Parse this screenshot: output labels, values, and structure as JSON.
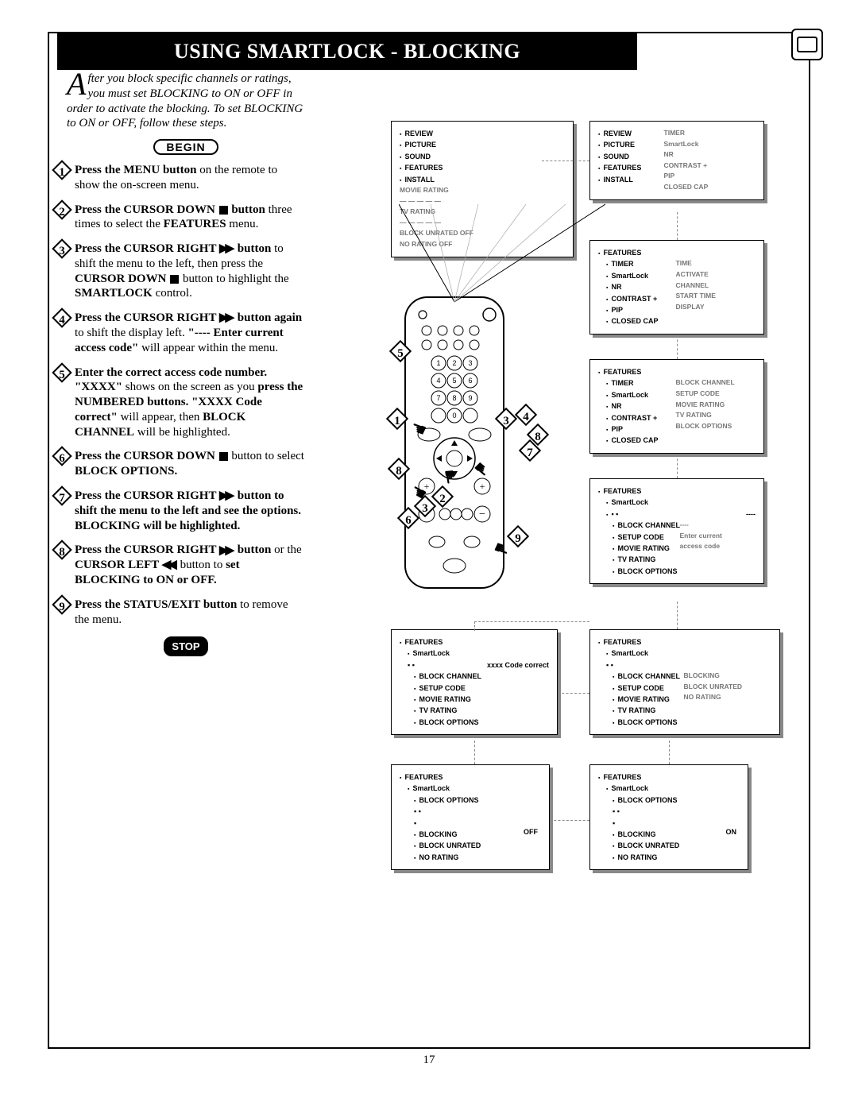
{
  "page_number": "17",
  "header_title": "USING SMARTLOCK - BLOCKING",
  "intro_text": "fter you block specific channels or ratings, you must set BLOCKING to ON or OFF in order to activate the blocking. To set BLOCKING to ON or OFF, follow these steps.",
  "intro_dropcap": "A",
  "begin_label": "BEGIN",
  "stop_label": "STOP",
  "steps": [
    {
      "n": "1",
      "html": "<b>Press the MENU button</b> on the remote to show the on-screen menu."
    },
    {
      "n": "2",
      "html": "<b>Press the CURSOR DOWN <span class='sq'></span> button</b> three times to select the <b>FEATURES</b> menu."
    },
    {
      "n": "3",
      "html": "<b>Press the CURSOR RIGHT <span class='rt'>▶▶</span> button</b> to shift the menu to the left, then press the <b>CURSOR DOWN <span class='sq'></span></b> button to highlight the <b>SMARTLOCK</b> control."
    },
    {
      "n": "4",
      "html": "<b>Press the CURSOR RIGHT <span class='rt'>▶▶</span> button again</b> to shift the display left. <b>\"---- Enter current access code\"</b> will appear within the menu."
    },
    {
      "n": "5",
      "html": "<b>Enter the correct access code number. \"XXXX\"</b> shows on the screen as you <b>press the NUMBERED buttons. \"XXXX Code correct\"</b> will appear, then <b>BLOCK CHANNEL</b> will be highlighted."
    },
    {
      "n": "6",
      "html": "<b>Press the CURSOR DOWN <span class='sq'></span></b> button to select <b>BLOCK OPTIONS.</b>"
    },
    {
      "n": "7",
      "html": "<b>Press the CURSOR RIGHT <span class='rt'>▶▶</span> button to shift the menu to the left and see the options. BLOCKING will be highlighted.</b>"
    },
    {
      "n": "8",
      "html": "<b>Press the CURSOR RIGHT <span class='rt'>▶▶</span> button</b> or the <b>CURSOR LEFT <span class='lt'>◀◀</span></b> button to <b>set BLOCKING to ON or OFF.</b>"
    },
    {
      "n": "9",
      "html": "<b>Press the STATUS/EXIT button</b> to remove the menu."
    }
  ],
  "menu1": {
    "left": [
      "REVIEW",
      "PICTURE",
      "SOUND",
      "FEATURES",
      "INSTALL"
    ],
    "right": [
      "MOVIE RATING",
      "— — — — —",
      "TV RATING",
      "— — — — —",
      "BLOCK UNRATED OFF",
      "NO RATING        OFF"
    ]
  },
  "menu2": {
    "left": [
      "REVIEW",
      "PICTURE",
      "SOUND",
      "FEATURES",
      "INSTALL"
    ],
    "right": [
      "TIMER",
      "SmartLock",
      "NR",
      "CONTRAST +",
      "PIP",
      "CLOSED CAP"
    ]
  },
  "menu3": {
    "title": "FEATURES",
    "left": [
      "TIMER",
      "SmartLock",
      "NR",
      "CONTRAST +",
      "PIP",
      "CLOSED CAP"
    ],
    "right": [
      "TIME",
      "ACTIVATE",
      "CHANNEL",
      "START TIME",
      "DISPLAY"
    ]
  },
  "menu4": {
    "title": "FEATURES",
    "left": [
      "TIMER",
      "SmartLock",
      "NR",
      "CONTRAST +",
      "PIP",
      "CLOSED CAP"
    ],
    "right": [
      "BLOCK CHANNEL",
      "SETUP CODE",
      "MOVIE RATING",
      "TV RATING",
      "BLOCK OPTIONS"
    ]
  },
  "menu5": {
    "title": "FEATURES",
    "sub": "SmartLock",
    "left": [
      "BLOCK CHANNEL",
      "SETUP CODE",
      "MOVIE RATING",
      "TV RATING",
      "BLOCK OPTIONS"
    ],
    "right": [
      "----",
      "Enter current",
      "access code"
    ]
  },
  "menu6": {
    "title": "FEATURES",
    "sub": "SmartLock",
    "note": "xxxx Code correct",
    "left": [
      "BLOCK CHANNEL",
      "SETUP CODE",
      "MOVIE RATING",
      "TV RATING",
      "BLOCK OPTIONS"
    ]
  },
  "menu7": {
    "title": "FEATURES",
    "sub": "SmartLock",
    "left": [
      "BLOCK CHANNEL",
      "SETUP CODE",
      "MOVIE RATING",
      "TV RATING",
      "BLOCK OPTIONS"
    ],
    "right": [
      "BLOCKING",
      "BLOCK UNRATED",
      "NO RATING"
    ]
  },
  "menu8": {
    "title": "FEATURES",
    "sub": "SmartLock",
    "sub2": "BLOCK OPTIONS",
    "left": [
      "BLOCKING",
      "BLOCK UNRATED",
      "NO RATING"
    ],
    "val": "OFF"
  },
  "menu9": {
    "title": "FEATURES",
    "sub": "SmartLock",
    "sub2": "BLOCK OPTIONS",
    "left": [
      "BLOCKING",
      "BLOCK UNRATED",
      "NO RATING"
    ],
    "val": "ON"
  },
  "remote_callouts": [
    "1",
    "2",
    "3",
    "4",
    "5",
    "6",
    "7",
    "8",
    "8",
    "9"
  ]
}
